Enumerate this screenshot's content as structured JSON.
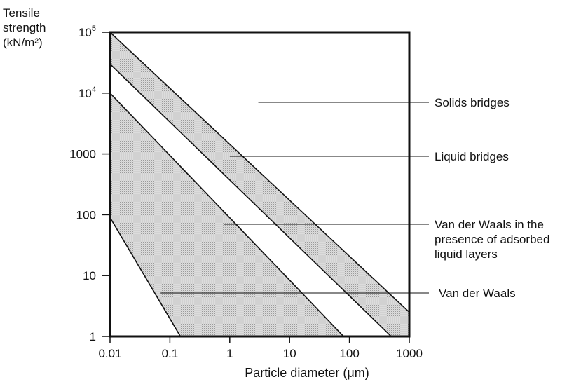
{
  "chart_data": {
    "type": "area",
    "xscale": "log",
    "yscale": "log",
    "xlim": [
      0.01,
      1000
    ],
    "ylim": [
      1,
      100000
    ],
    "xlabel": "Particle diameter (μm)",
    "ylabel": [
      "Tensile",
      "strength",
      "(kN/m²)"
    ],
    "x_ticks": [
      {
        "value": 0.01,
        "label": "0.01"
      },
      {
        "value": 0.1,
        "label": "0.1"
      },
      {
        "value": 1,
        "label": "1"
      },
      {
        "value": 10,
        "label": "10"
      },
      {
        "value": 100,
        "label": "100"
      },
      {
        "value": 1000,
        "label": "1000"
      }
    ],
    "y_ticks": [
      {
        "value": 100000,
        "base": "10",
        "sup": "5"
      },
      {
        "value": 10000,
        "base": "10",
        "sup": "4"
      },
      {
        "value": 1000,
        "base": "1000",
        "sup": ""
      },
      {
        "value": 100,
        "base": "100",
        "sup": ""
      },
      {
        "value": 10,
        "base": "10",
        "sup": ""
      },
      {
        "value": 1,
        "base": "1",
        "sup": ""
      }
    ],
    "grid": false,
    "bands": [
      {
        "upper": [
          [
            0.01,
            100000
          ],
          [
            1000,
            2.5
          ]
        ],
        "lower": [
          [
            0.01,
            30000
          ],
          [
            500,
            1
          ]
        ],
        "shaded": true
      },
      {
        "upper": [
          [
            0.01,
            10000
          ],
          [
            80,
            1
          ]
        ],
        "lower": [
          [
            0.01,
            90
          ],
          [
            0.15,
            1
          ]
        ],
        "shaded": true
      }
    ],
    "annotations": [
      {
        "text": [
          "Solids bridges"
        ],
        "point": [
          3,
          20000
        ]
      },
      {
        "text": [
          "Liquid bridges"
        ],
        "point": [
          1,
          1000
        ]
      },
      {
        "text": [
          "Van der Waals in the",
          "presence of adsorbed",
          "liquid layers"
        ],
        "point": [
          0.8,
          90
        ]
      },
      {
        "text": [
          "Van der Waals"
        ],
        "point": [
          0.07,
          5.5
        ]
      }
    ],
    "colors": {
      "band_fill": "#d9d9d9",
      "line": "#111111",
      "background": "#ffffff"
    }
  }
}
